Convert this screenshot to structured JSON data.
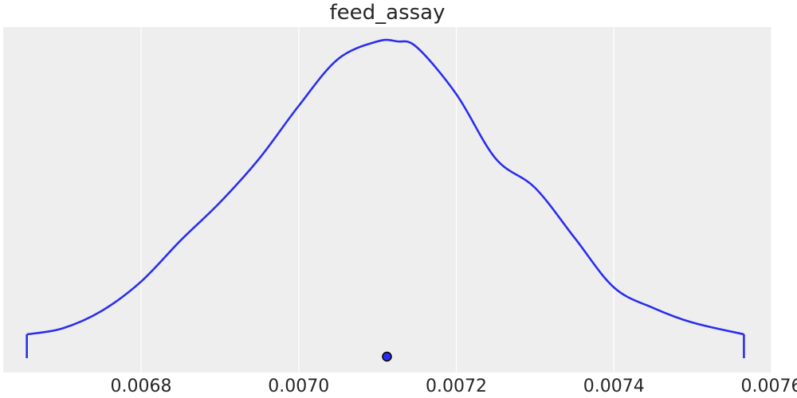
{
  "chart_data": {
    "type": "line",
    "title": "feed_assay",
    "xlabel": "",
    "ylabel": "",
    "xlim": [
      0.006625,
      0.0076
    ],
    "ylim": [
      -0.04,
      1.05
    ],
    "grid": true,
    "grid_axis": "x",
    "x_ticks": [
      0.0068,
      0.007,
      0.0072,
      0.0074,
      0.0076
    ],
    "x_tick_labels": [
      "0.0068",
      "0.0070",
      "0.0072",
      "0.0074",
      "0.0076"
    ],
    "series": [
      {
        "color": "#2a2eec",
        "x": [
          0.006655,
          0.0067,
          0.00675,
          0.0068,
          0.00685,
          0.0069,
          0.00695,
          0.007,
          0.00705,
          0.0071,
          0.007125,
          0.00715,
          0.0072,
          0.00725,
          0.0073,
          0.00735,
          0.0074,
          0.00745,
          0.0075,
          0.007565
        ],
        "y": [
          0.0,
          0.02,
          0.08,
          0.18,
          0.32,
          0.45,
          0.6,
          0.78,
          0.94,
          1.0,
          1.0,
          0.98,
          0.82,
          0.6,
          0.5,
          0.33,
          0.16,
          0.09,
          0.04,
          0.0
        ]
      }
    ],
    "markers": [
      {
        "label": "",
        "x": 0.007112,
        "y": -0.075,
        "color": "#2a2eec"
      }
    ],
    "bounds_drop": [
      0.006655,
      0.007565
    ],
    "background": "#eeeeef",
    "grid_color": "#ffffff"
  }
}
